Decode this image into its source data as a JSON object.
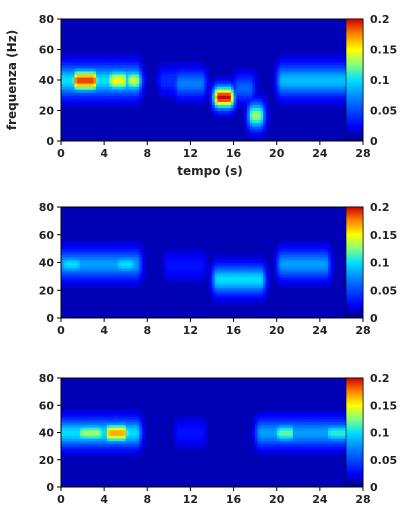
{
  "figure": {
    "xlabel": "tempo (s)",
    "ylabel": "frequenza (Hz)"
  },
  "chart_data": [
    {
      "type": "heatmap",
      "title": "",
      "xlabel": "tempo (s)",
      "ylabel": "frequenza (Hz)",
      "xlim": [
        0,
        28
      ],
      "ylim": [
        0,
        80
      ],
      "xticks": [
        "0",
        "4",
        "8",
        "12",
        "16",
        "20",
        "24",
        "28"
      ],
      "yticks": [
        "0",
        "20",
        "40",
        "60",
        "80"
      ],
      "colorbar": {
        "range": [
          0,
          0.2
        ],
        "ticks": [
          "0",
          "0.05",
          "0.1",
          "0.15",
          "0.2"
        ]
      },
      "background_level": 0.01,
      "blobs": [
        {
          "t0": 0,
          "t1": 7,
          "f": 40,
          "spread": 7,
          "level": 0.1
        },
        {
          "t0": 1.5,
          "t1": 3,
          "f": 40,
          "spread": 5,
          "level": 0.19
        },
        {
          "t0": 4.8,
          "t1": 5.8,
          "f": 40,
          "spread": 5,
          "level": 0.15
        },
        {
          "t0": 6.5,
          "t1": 7,
          "f": 40,
          "spread": 5,
          "level": 0.14
        },
        {
          "t0": 9.5,
          "t1": 11,
          "f": 40,
          "spread": 6,
          "level": 0.04
        },
        {
          "t0": 11,
          "t1": 13,
          "f": 38,
          "spread": 6,
          "level": 0.07
        },
        {
          "t0": 14.6,
          "t1": 15.6,
          "f": 29,
          "spread": 5,
          "level": 0.2
        },
        {
          "t0": 16.5,
          "t1": 17.5,
          "f": 35,
          "spread": 6,
          "level": 0.06
        },
        {
          "t0": 17.8,
          "t1": 18.4,
          "f": 17,
          "spread": 6,
          "level": 0.13
        },
        {
          "t0": 20.5,
          "t1": 27,
          "f": 40,
          "spread": 7,
          "level": 0.09
        }
      ]
    },
    {
      "type": "heatmap",
      "title": "",
      "xlabel": "",
      "ylabel": "",
      "xlim": [
        0,
        28
      ],
      "ylim": [
        0,
        80
      ],
      "xticks": [
        "0",
        "4",
        "8",
        "12",
        "16",
        "20",
        "24",
        "28"
      ],
      "yticks": [
        "0",
        "20",
        "40",
        "60",
        "80"
      ],
      "colorbar": {
        "range": [
          0,
          0.2
        ],
        "ticks": [
          "0",
          "0.05",
          "0.1",
          "0.15",
          "0.2"
        ]
      },
      "background_level": 0.01,
      "blobs": [
        {
          "t0": 0,
          "t1": 7,
          "f": 39,
          "spread": 7,
          "level": 0.08
        },
        {
          "t0": 0.5,
          "t1": 1.5,
          "f": 39,
          "spread": 5,
          "level": 0.1
        },
        {
          "t0": 5.5,
          "t1": 6.5,
          "f": 39,
          "spread": 5,
          "level": 0.1
        },
        {
          "t0": 10,
          "t1": 13,
          "f": 38,
          "spread": 7,
          "level": 0.03
        },
        {
          "t0": 14.5,
          "t1": 18.5,
          "f": 28,
          "spread": 7,
          "level": 0.1
        },
        {
          "t0": 20.5,
          "t1": 24.5,
          "f": 39,
          "spread": 7,
          "level": 0.08
        }
      ]
    },
    {
      "type": "heatmap",
      "title": "",
      "xlabel": "",
      "ylabel": "",
      "xlim": [
        0,
        28
      ],
      "ylim": [
        0,
        80
      ],
      "xticks": [
        "0",
        "4",
        "8",
        "12",
        "16",
        "20",
        "24",
        "28"
      ],
      "yticks": [
        "0",
        "20",
        "40",
        "60",
        "80"
      ],
      "colorbar": {
        "range": [
          0,
          0.2
        ],
        "ticks": [
          "0",
          "0.05",
          "0.1",
          "0.15",
          "0.2"
        ]
      },
      "background_level": 0.01,
      "blobs": [
        {
          "t0": 0,
          "t1": 7,
          "f": 40,
          "spread": 7,
          "level": 0.1
        },
        {
          "t0": 4.5,
          "t1": 5.8,
          "f": 40,
          "spread": 5,
          "level": 0.17
        },
        {
          "t0": 2,
          "t1": 3.5,
          "f": 40,
          "spread": 5,
          "level": 0.13
        },
        {
          "t0": 11,
          "t1": 13,
          "f": 40,
          "spread": 7,
          "level": 0.03
        },
        {
          "t0": 18.5,
          "t1": 27,
          "f": 40,
          "spread": 7,
          "level": 0.08
        },
        {
          "t0": 20.3,
          "t1": 21.3,
          "f": 40,
          "spread": 5,
          "level": 0.12
        },
        {
          "t0": 25,
          "t1": 26.5,
          "f": 40,
          "spread": 5,
          "level": 0.11
        }
      ]
    }
  ]
}
